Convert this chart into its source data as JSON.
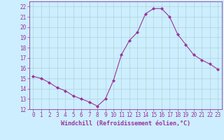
{
  "x": [
    0,
    1,
    2,
    3,
    4,
    5,
    6,
    7,
    8,
    9,
    10,
    11,
    12,
    13,
    14,
    15,
    16,
    17,
    18,
    19,
    20,
    21,
    22,
    23
  ],
  "y": [
    15.2,
    15.0,
    14.6,
    14.1,
    13.8,
    13.3,
    13.0,
    12.7,
    12.3,
    13.0,
    14.8,
    17.3,
    18.7,
    19.5,
    21.3,
    21.8,
    21.8,
    21.0,
    19.3,
    18.3,
    17.3,
    16.8,
    16.4,
    15.9
  ],
  "line_color": "#993399",
  "marker": "D",
  "marker_size": 2.0,
  "bg_color": "#cceeff",
  "grid_color": "#aacccc",
  "xlabel": "Windchill (Refroidissement éolien,°C)",
  "ylabel_ticks": [
    12,
    13,
    14,
    15,
    16,
    17,
    18,
    19,
    20,
    21,
    22
  ],
  "xlim": [
    -0.5,
    23.5
  ],
  "ylim": [
    12,
    22.5
  ],
  "tick_color": "#993399",
  "label_color": "#993399",
  "axis_color": "#993399",
  "tick_fontsize": 5.5,
  "xlabel_fontsize": 6.0
}
